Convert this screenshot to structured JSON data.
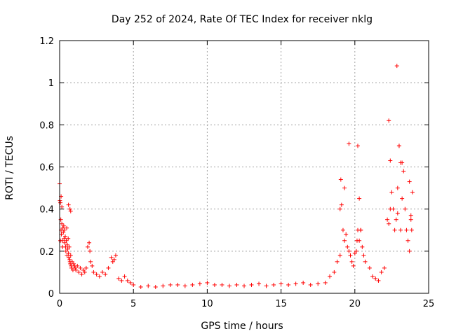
{
  "chart_data": {
    "type": "scatter",
    "title": "Day 252 of 2024, Rate Of TEC Index for receiver nklg",
    "xlabel": "GPS time / hours",
    "ylabel": "ROTI / TECUs",
    "xlim": [
      0,
      25
    ],
    "ylim": [
      0,
      1.2
    ],
    "xticks": [
      0,
      5,
      10,
      15,
      20,
      25
    ],
    "xtick_labels": [
      "0",
      "5",
      "10",
      "15",
      "20",
      "25"
    ],
    "yticks": [
      0,
      0.2,
      0.4,
      0.6,
      0.8,
      1,
      1.2
    ],
    "ytick_labels": [
      "0",
      "0.2",
      "0.4",
      "0.6",
      "0.8",
      "1",
      "1.2"
    ],
    "grid": true,
    "marker": "+",
    "marker_color": "#ff0000",
    "series": [
      {
        "name": "ROTI",
        "x": [
          0.02,
          0.05,
          0.08,
          0.1,
          0.12,
          0.15,
          0.18,
          0.2,
          0.22,
          0.25,
          0.28,
          0.3,
          0.32,
          0.35,
          0.38,
          0.4,
          0.42,
          0.45,
          0.48,
          0.5,
          0.52,
          0.55,
          0.58,
          0.6,
          0.62,
          0.65,
          0.68,
          0.7,
          0.72,
          0.75,
          0.78,
          0.8,
          0.85,
          0.9,
          0.95,
          1.0,
          1.05,
          1.1,
          1.2,
          1.3,
          1.4,
          1.5,
          1.6,
          1.7,
          1.8,
          1.9,
          2.0,
          2.05,
          2.1,
          2.2,
          2.3,
          2.5,
          2.7,
          2.9,
          3.1,
          3.3,
          3.5,
          3.6,
          3.7,
          3.8,
          4.0,
          4.2,
          4.4,
          4.6,
          4.8,
          5.0,
          5.5,
          6.0,
          6.5,
          7.0,
          7.5,
          8.0,
          8.5,
          9.0,
          9.5,
          10.0,
          10.5,
          11.0,
          11.5,
          12.0,
          12.5,
          13.0,
          13.5,
          14.0,
          14.5,
          15.0,
          15.5,
          16.0,
          16.5,
          17.0,
          17.5,
          18.0,
          18.3,
          18.6,
          18.8,
          19.0,
          19.1,
          19.2,
          19.3,
          19.4,
          19.5,
          19.6,
          19.7,
          19.8,
          19.9,
          20.0,
          20.1,
          20.15,
          20.2,
          20.3,
          20.4,
          20.5,
          20.6,
          20.7,
          21.0,
          21.2,
          21.4,
          21.6,
          21.8,
          22.0,
          22.2,
          22.3,
          22.4,
          22.5,
          22.6,
          22.7,
          22.8,
          22.9,
          23.0,
          23.1,
          23.2,
          23.3,
          23.4,
          23.5,
          23.6,
          23.7,
          23.8,
          23.9,
          0.0,
          0.05,
          0.1,
          0.15,
          0.6,
          0.7,
          0.75,
          19.0,
          19.05,
          19.3,
          19.6,
          20.2,
          20.3,
          20.4,
          22.3,
          22.4,
          22.9,
          22.85,
          23.0,
          23.1,
          23.2,
          23.7,
          23.8,
          23.85
        ],
        "y": [
          0.44,
          0.43,
          0.35,
          0.3,
          0.28,
          0.33,
          0.25,
          0.22,
          0.31,
          0.29,
          0.32,
          0.26,
          0.3,
          0.24,
          0.27,
          0.22,
          0.2,
          0.25,
          0.31,
          0.18,
          0.23,
          0.21,
          0.26,
          0.19,
          0.17,
          0.22,
          0.16,
          0.15,
          0.14,
          0.18,
          0.13,
          0.12,
          0.15,
          0.11,
          0.14,
          0.13,
          0.12,
          0.11,
          0.13,
          0.1,
          0.12,
          0.09,
          0.11,
          0.1,
          0.12,
          0.22,
          0.24,
          0.2,
          0.15,
          0.13,
          0.1,
          0.09,
          0.08,
          0.1,
          0.09,
          0.12,
          0.17,
          0.15,
          0.16,
          0.18,
          0.07,
          0.06,
          0.08,
          0.06,
          0.05,
          0.04,
          0.03,
          0.035,
          0.03,
          0.035,
          0.04,
          0.04,
          0.035,
          0.04,
          0.045,
          0.05,
          0.04,
          0.04,
          0.035,
          0.04,
          0.035,
          0.04,
          0.045,
          0.035,
          0.04,
          0.045,
          0.04,
          0.045,
          0.05,
          0.04,
          0.045,
          0.05,
          0.08,
          0.1,
          0.15,
          0.18,
          0.42,
          0.3,
          0.25,
          0.28,
          0.22,
          0.2,
          0.18,
          0.15,
          0.13,
          0.19,
          0.2,
          0.25,
          0.7,
          0.45,
          0.3,
          0.22,
          0.18,
          0.15,
          0.12,
          0.08,
          0.07,
          0.06,
          0.1,
          0.12,
          0.35,
          0.82,
          0.63,
          0.48,
          0.4,
          0.3,
          0.35,
          0.5,
          0.7,
          0.3,
          0.62,
          0.58,
          0.4,
          0.3,
          0.25,
          0.2,
          0.35,
          0.48,
          0.52,
          0.25,
          0.46,
          0.41,
          0.42,
          0.4,
          0.39,
          0.4,
          0.54,
          0.5,
          0.71,
          0.3,
          0.25,
          0.3,
          0.33,
          0.4,
          0.38,
          1.08,
          0.7,
          0.62,
          0.45,
          0.53,
          0.37,
          0.3
        ]
      }
    ]
  }
}
